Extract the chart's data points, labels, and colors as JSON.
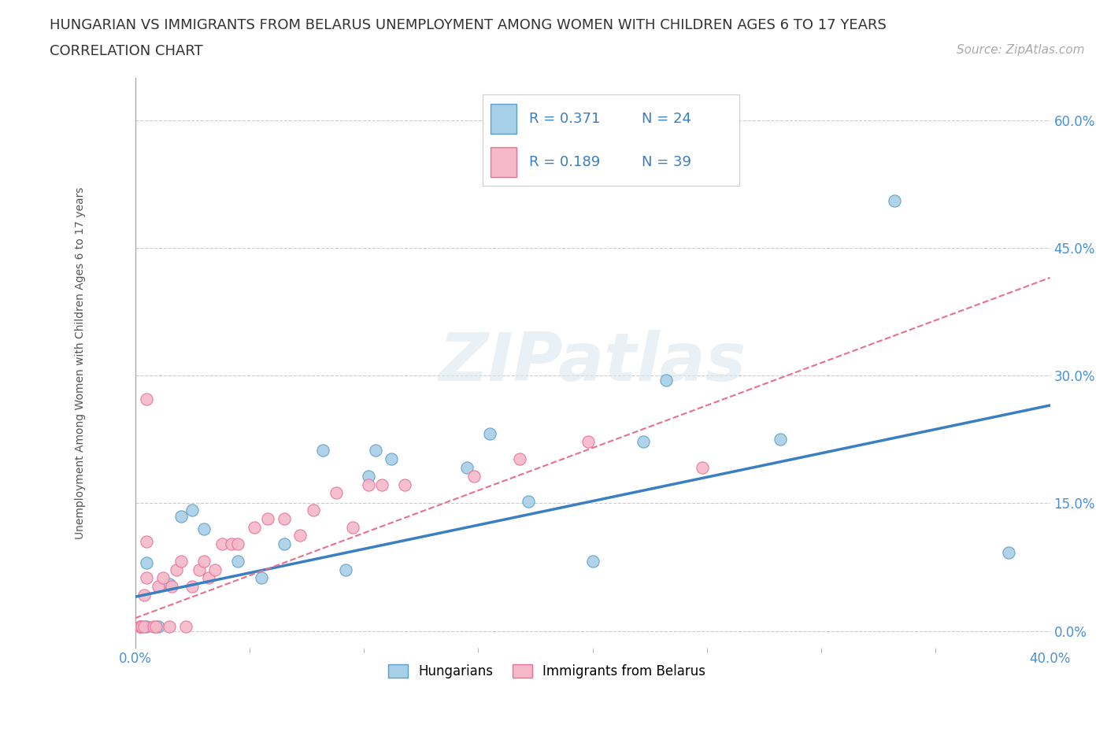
{
  "title_line1": "HUNGARIAN VS IMMIGRANTS FROM BELARUS UNEMPLOYMENT AMONG WOMEN WITH CHILDREN AGES 6 TO 17 YEARS",
  "title_line2": "CORRELATION CHART",
  "source": "Source: ZipAtlas.com",
  "ylabel": "Unemployment Among Women with Children Ages 6 to 17 years",
  "xlim": [
    0.0,
    0.4
  ],
  "ylim": [
    -0.02,
    0.65
  ],
  "xtick_labels_ends": [
    "0.0%",
    "40.0%"
  ],
  "xtick_vals_ends": [
    0.0,
    0.4
  ],
  "xtick_vals_minor": [
    0.05,
    0.1,
    0.15,
    0.2,
    0.25,
    0.3,
    0.35
  ],
  "ytick_labels": [
    "0.0%",
    "15.0%",
    "30.0%",
    "45.0%",
    "60.0%"
  ],
  "ytick_vals": [
    0.0,
    0.15,
    0.3,
    0.45,
    0.6
  ],
  "blue_color": "#a8cfe8",
  "blue_edge_color": "#5b9fc7",
  "pink_color": "#f5b8c8",
  "pink_edge_color": "#e87098",
  "blue_line_color": "#3a7fc1",
  "pink_line_color": "#e8708a",
  "grid_color": "#cccccc",
  "background_color": "#ffffff",
  "watermark": "ZIPatlas",
  "legend_R_blue": "R = 0.371",
  "legend_N_blue": "N = 24",
  "legend_R_pink": "R = 0.189",
  "legend_N_pink": "N = 39",
  "blue_scatter_x": [
    0.005,
    0.005,
    0.01,
    0.015,
    0.02,
    0.025,
    0.03,
    0.045,
    0.055,
    0.065,
    0.082,
    0.092,
    0.102,
    0.105,
    0.112,
    0.145,
    0.155,
    0.172,
    0.2,
    0.222,
    0.232,
    0.282,
    0.332,
    0.382
  ],
  "blue_scatter_y": [
    0.005,
    0.08,
    0.005,
    0.055,
    0.135,
    0.142,
    0.12,
    0.082,
    0.062,
    0.102,
    0.212,
    0.072,
    0.182,
    0.212,
    0.202,
    0.192,
    0.232,
    0.152,
    0.082,
    0.222,
    0.295,
    0.225,
    0.505,
    0.092
  ],
  "pink_scatter_x": [
    0.002,
    0.002,
    0.003,
    0.004,
    0.004,
    0.005,
    0.005,
    0.005,
    0.008,
    0.009,
    0.01,
    0.012,
    0.015,
    0.016,
    0.018,
    0.02,
    0.022,
    0.025,
    0.028,
    0.03,
    0.032,
    0.035,
    0.038,
    0.042,
    0.045,
    0.052,
    0.058,
    0.065,
    0.072,
    0.078,
    0.088,
    0.095,
    0.102,
    0.108,
    0.118,
    0.148,
    0.168,
    0.198,
    0.248
  ],
  "pink_scatter_y": [
    0.005,
    0.005,
    0.005,
    0.005,
    0.042,
    0.062,
    0.105,
    0.272,
    0.005,
    0.005,
    0.052,
    0.062,
    0.005,
    0.052,
    0.072,
    0.082,
    0.005,
    0.052,
    0.072,
    0.082,
    0.062,
    0.072,
    0.102,
    0.102,
    0.102,
    0.122,
    0.132,
    0.132,
    0.112,
    0.142,
    0.162,
    0.122,
    0.172,
    0.172,
    0.172,
    0.182,
    0.202,
    0.222,
    0.192
  ],
  "blue_trend_x0": 0.0,
  "blue_trend_x1": 0.4,
  "blue_trend_y0": 0.04,
  "blue_trend_y1": 0.265,
  "pink_trend_x0": 0.0,
  "pink_trend_x1": 0.4,
  "pink_trend_y0": 0.015,
  "pink_trend_y1": 0.415,
  "title_fontsize": 13,
  "subtitle_fontsize": 13,
  "axis_label_fontsize": 10,
  "tick_fontsize": 12,
  "source_fontsize": 11,
  "ytick_color": "#4a90d9",
  "xtick_color": "#4a90d9"
}
